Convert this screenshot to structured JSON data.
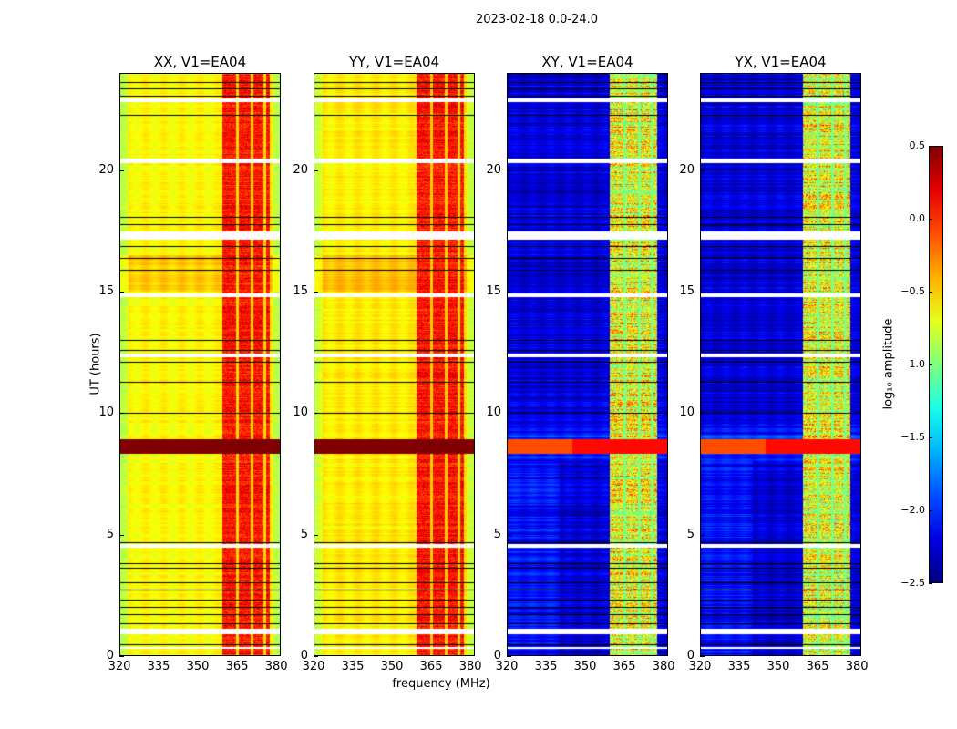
{
  "figure": {
    "suptitle": "2023-02-18 0.0-24.0",
    "xlabel": "frequency (MHz)",
    "ylabel": "UT (hours)"
  },
  "chart_data": {
    "type": "heatmap",
    "title": "2023-02-18 0.0-24.0",
    "xlabel": "frequency (MHz)",
    "ylabel": "UT (hours)",
    "xlim": [
      320,
      381.7
    ],
    "ylim": [
      0,
      24
    ],
    "xticks": [
      "320",
      "335",
      "350",
      "365",
      "380"
    ],
    "xtick_values": [
      320,
      335,
      350,
      365,
      380
    ],
    "yticks": [
      "0",
      "5",
      "10",
      "15",
      "20"
    ],
    "ytick_values": [
      0,
      5,
      10,
      15,
      20
    ],
    "panels": [
      {
        "title": "XX, V1=EA04",
        "base": -0.62,
        "rfi": 0.0,
        "highband": 0.5
      },
      {
        "title": "YY, V1=EA04",
        "base": -0.58,
        "rfi": 0.0,
        "highband": 0.5
      },
      {
        "title": "XY, V1=EA04",
        "base": -2.25,
        "rfi": -0.85,
        "highband": 0.1
      },
      {
        "title": "YX, V1=EA04",
        "base": -2.25,
        "rfi": -0.85,
        "highband": 0.1
      }
    ],
    "rfi_band_mhz": [
      359.5,
      377.8
    ],
    "rfi_gaps_mhz": [
      365.3,
      370.8,
      375.8
    ],
    "high_amplitude_hours": [
      8.3,
      8.9
    ],
    "flagged_hours_white": [
      [
        0.25,
        0.35
      ],
      [
        0.85,
        1.1
      ],
      [
        4.45,
        4.6
      ],
      [
        12.3,
        12.45
      ],
      [
        14.8,
        14.95
      ],
      [
        17.15,
        17.5
      ],
      [
        20.3,
        20.5
      ],
      [
        22.85,
        23.0
      ]
    ],
    "flagged_hours_black": [
      0.45,
      1.3,
      1.7,
      2.0,
      2.3,
      2.7,
      3.0,
      3.6,
      3.8,
      4.65,
      10.0,
      11.3,
      12.1,
      12.6,
      13.0,
      15.9,
      16.4,
      16.9,
      17.8,
      18.1,
      22.3,
      23.1,
      23.4,
      23.65
    ],
    "colorbar": {
      "label": "log₁₀ amplitude",
      "cmap": "jet",
      "vmin": -2.5,
      "vmax": 0.5,
      "ticks": [
        "0.5",
        "0.0",
        "−0.5",
        "−1.0",
        "−1.5",
        "−2.0",
        "−2.5"
      ],
      "tick_values": [
        0.5,
        0.0,
        -0.5,
        -1.0,
        -1.5,
        -2.0,
        -2.5
      ]
    }
  }
}
